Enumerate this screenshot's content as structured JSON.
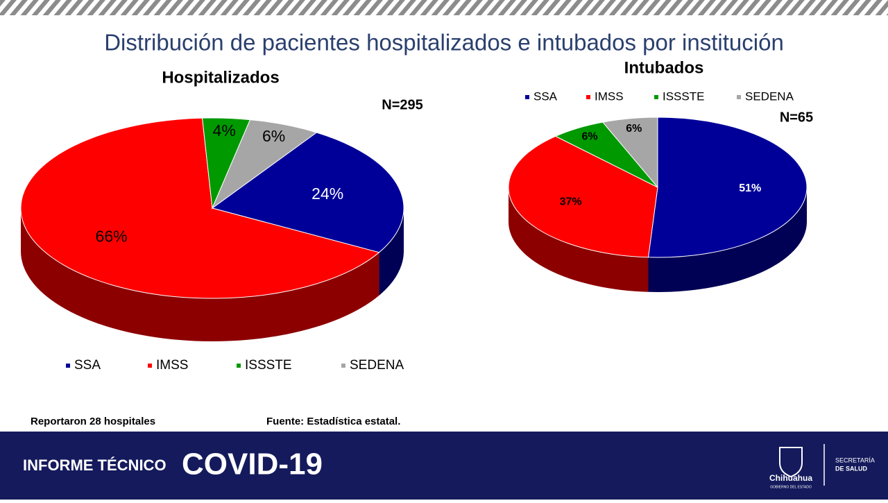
{
  "title": "Distribución de pacientes hospitalizados e intubados por institución",
  "chart_data": [
    {
      "type": "pie",
      "title": "Hospitalizados",
      "subtitle": "N=295",
      "categories": [
        "SSA",
        "IMSS",
        "ISSSTE",
        "SEDENA"
      ],
      "values": [
        24,
        66,
        4,
        6
      ],
      "value_labels": [
        "24%",
        "66%",
        "4%",
        "6%"
      ],
      "colors": [
        "#000099",
        "#ff0000",
        "#009900",
        "#a6a6a6"
      ],
      "legend": "bottom"
    },
    {
      "type": "pie",
      "title": "Intubados",
      "subtitle": "N=65",
      "categories": [
        "SSA",
        "IMSS",
        "ISSSTE",
        "SEDENA"
      ],
      "values": [
        51,
        37,
        6,
        6
      ],
      "value_labels": [
        "51%",
        "37%",
        "6%",
        "6%"
      ],
      "colors": [
        "#000099",
        "#ff0000",
        "#009900",
        "#a6a6a6"
      ],
      "legend": "top"
    }
  ],
  "footer": {
    "note": "Reportaron 28 hospitales",
    "source": "Fuente: Estadística estatal.",
    "banner_label": "INFORME TÉCNICO",
    "banner_title": "COVID-19",
    "logo_text": "Chihuahua",
    "logo_subtext": "GOBIERNO DEL ESTADO",
    "dept_line1": "SECRETARÍA",
    "dept_line2": "DE SALUD"
  }
}
